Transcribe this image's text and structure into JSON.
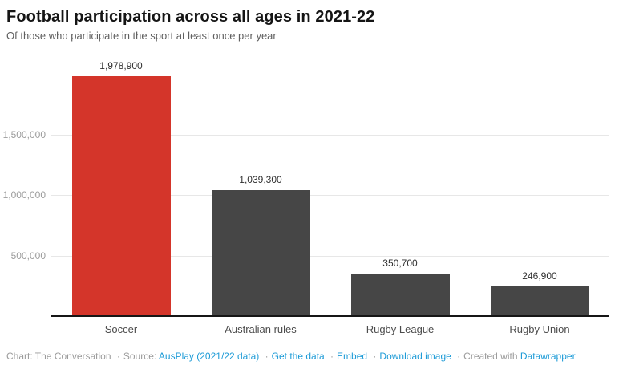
{
  "header": {
    "title": "Football participation across all ages in 2021-22",
    "subtitle": "Of those who participate in the sport at least once per year"
  },
  "chart_data": {
    "type": "bar",
    "title": "Football participation across all ages in 2021-22",
    "subtitle": "Of those who participate in the sport at least once per year",
    "categories": [
      "Soccer",
      "Australian rules",
      "Rugby League",
      "Rugby Union"
    ],
    "values": [
      1978900,
      1039300,
      350700,
      246900
    ],
    "value_labels": [
      "1,978,900",
      "1,039,300",
      "350,700",
      "246,900"
    ],
    "bar_colors": [
      "#d4352a",
      "#464646",
      "#464646",
      "#464646"
    ],
    "xlabel": "",
    "ylabel": "",
    "ylim": [
      0,
      2000000
    ],
    "grid": true,
    "legend": "none",
    "y_ticks": [
      {
        "value": 500000,
        "label": "500,000"
      },
      {
        "value": 1000000,
        "label": "1,000,000"
      },
      {
        "value": 1500000,
        "label": "1,500,000"
      }
    ]
  },
  "colors": {
    "accent_red": "#d4352a",
    "bar_gray": "#464646",
    "link_blue": "#1d9bd7",
    "gridline": "#e7e7e7",
    "baseline": "#161616"
  },
  "footer": {
    "separator": "·",
    "segments": [
      {
        "type": "text",
        "text": "Chart: The Conversation",
        "name": "footer-credit"
      },
      {
        "type": "sep"
      },
      {
        "type": "text",
        "text": "Source:",
        "name": "footer-source-label"
      },
      {
        "type": "link",
        "text": "AusPlay (2021/22 data)",
        "name": "source-link"
      },
      {
        "type": "sep"
      },
      {
        "type": "link",
        "text": "Get the data",
        "name": "get-the-data-link"
      },
      {
        "type": "sep"
      },
      {
        "type": "link",
        "text": "Embed",
        "name": "embed-link"
      },
      {
        "type": "sep"
      },
      {
        "type": "link",
        "text": "Download image",
        "name": "download-image-link"
      },
      {
        "type": "sep"
      },
      {
        "type": "text",
        "text": "Created with",
        "name": "footer-created-with"
      },
      {
        "type": "link",
        "text": "Datawrapper",
        "name": "datawrapper-link"
      }
    ]
  }
}
